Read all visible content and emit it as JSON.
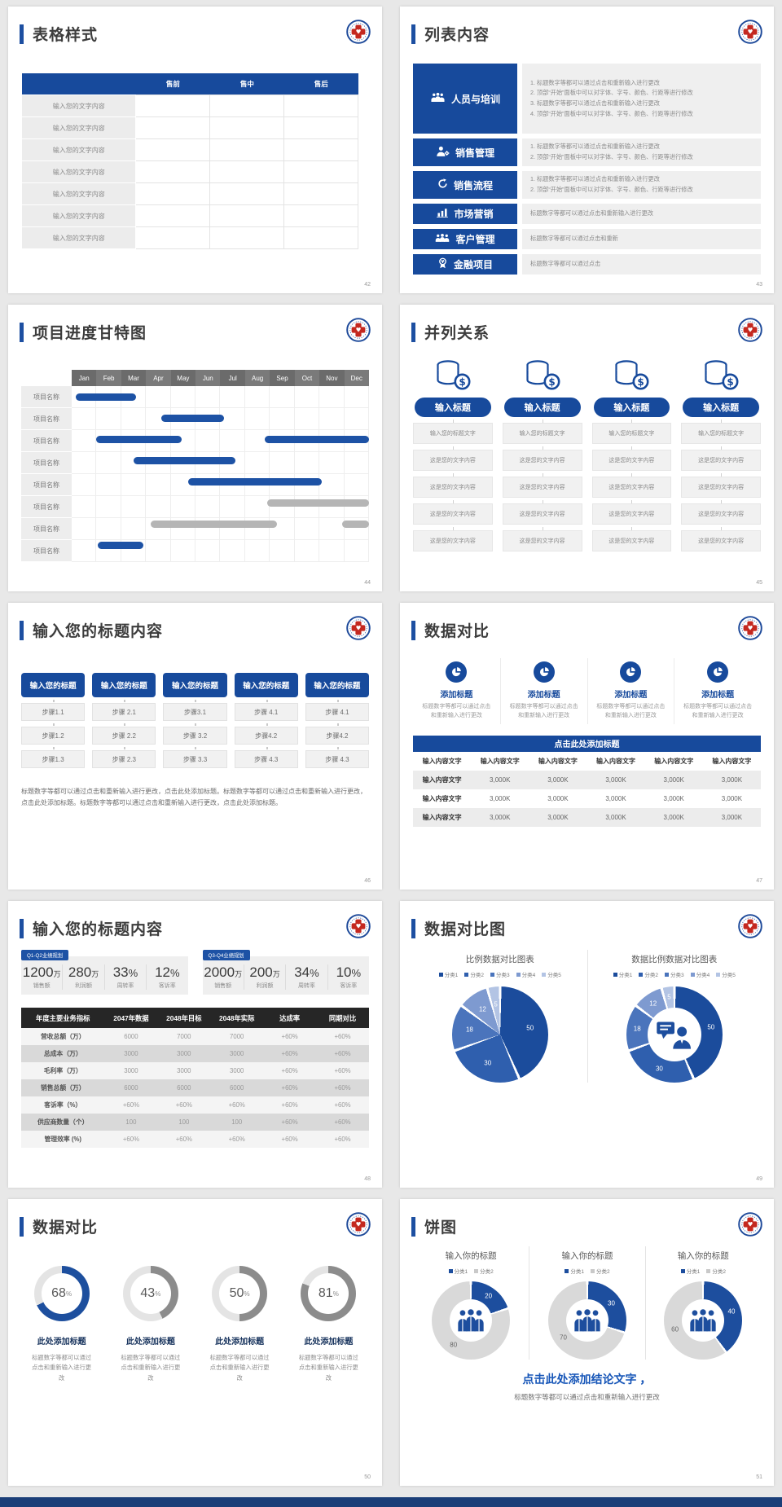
{
  "colors": {
    "primary": "#174A9C",
    "accent_bar": "#1D4FA1",
    "bar_blue": "#1D52A5",
    "bar_gray": "#B5B5B5",
    "month_dark": "#6B6B6B",
    "month_light": "#7A7A7A",
    "strip": "#1B3E78",
    "pie_palette": [
      "#1B4C9C",
      "#2F5FAE",
      "#4A74BC",
      "#7E9AD0",
      "#B3C4E4"
    ],
    "donut_blue": "#1D4E9E",
    "donut_gray": "#D9D9D9",
    "ring_blue": "#1D4F9E",
    "ring_gray": "#8C8C8C",
    "ring_base": "#E4E4E4"
  },
  "slides": {
    "s42": {
      "title": "表格样式",
      "page_num": "42",
      "table": {
        "headers": [
          "",
          "售前",
          "售中",
          "售后"
        ],
        "row_label": "输入您的文字内容",
        "row_count": 7
      }
    },
    "s43": {
      "title": "列表内容",
      "page_num": "43",
      "items": [
        {
          "label": "人员与培训",
          "icon": "team-icon",
          "size": "tall",
          "numbered": true,
          "lines": [
            "标题数字等都可以通过点击和重新输入进行更改",
            "顶部“开始”面板中可以对字体、字号、颜色、行距等进行修改",
            "标题数字等都可以通过点击和重新输入进行更改",
            "顶部“开始”面板中可以对字体、字号、颜色、行距等进行修改"
          ]
        },
        {
          "label": "销售管理",
          "icon": "person-gear-icon",
          "size": "two",
          "numbered": true,
          "lines": [
            "标题数字等都可以通过点击和重新输入进行更改",
            "顶部“开始”面板中可以对字体、字号、颜色、行距等进行修改"
          ]
        },
        {
          "label": "销售流程",
          "icon": "cycle-icon",
          "size": "two",
          "numbered": true,
          "lines": [
            "标题数字等都可以通过点击和重新输入进行更改",
            "顶部“开始”面板中可以对字体、字号、颜色、行距等进行修改"
          ]
        },
        {
          "label": "市场营销",
          "icon": "bar-chart-icon",
          "size": "one",
          "numbered": false,
          "lines": [
            "标题数字等都可以通过点击和重新输入进行更改"
          ]
        },
        {
          "label": "客户管理",
          "icon": "customers-icon",
          "size": "one",
          "numbered": false,
          "lines": [
            "标题数字等都可以通过点击和重新"
          ]
        },
        {
          "label": "金融项目",
          "icon": "finance-icon",
          "size": "one",
          "numbered": false,
          "lines": [
            "标题数字等都可以通过点击"
          ]
        }
      ]
    },
    "s44": {
      "title": "项目进度甘特图",
      "page_num": "44",
      "months": [
        "Jan",
        "Feb",
        "Mar",
        "Apr",
        "May",
        "Jun",
        "Jul",
        "Aug",
        "Sep",
        "Oct",
        "Nov",
        "Dec"
      ],
      "row_label": "项目名称",
      "row_count": 8,
      "bars": [
        {
          "row": 0,
          "start": 0.15,
          "end": 2.6,
          "color": "blue"
        },
        {
          "row": 1,
          "start": 3.6,
          "end": 6.15,
          "color": "blue"
        },
        {
          "row": 2,
          "start": 1.0,
          "end": 4.45,
          "color": "blue"
        },
        {
          "row": 2,
          "start": 7.8,
          "end": 12,
          "color": "blue"
        },
        {
          "row": 3,
          "start": 2.5,
          "end": 6.6,
          "color": "blue"
        },
        {
          "row": 4,
          "start": 4.7,
          "end": 10.1,
          "color": "blue"
        },
        {
          "row": 5,
          "start": 7.9,
          "end": 12,
          "color": "gray"
        },
        {
          "row": 6,
          "start": 3.2,
          "end": 8.3,
          "color": "gray"
        },
        {
          "row": 6,
          "start": 10.9,
          "end": 12,
          "color": "gray"
        },
        {
          "row": 7,
          "start": 1.05,
          "end": 2.9,
          "color": "blue"
        }
      ]
    },
    "s45": {
      "title": "并列关系",
      "page_num": "45",
      "columns": 4,
      "icon": "coins-icon",
      "pill_label": "输入标题",
      "rows": [
        "输入您的标题文字",
        "这是您的文字内容",
        "这是您的文字内容",
        "这是您的文字内容",
        "这是您的文字内容"
      ]
    },
    "s46": {
      "title": "输入您的标题内容",
      "page_num": "46",
      "header_label": "输入您的标题",
      "columns": [
        [
          "步骤1.1",
          "步骤1.2",
          "步骤1.3"
        ],
        [
          "步骤 2.1",
          "步骤 2.2",
          "步骤 2.3"
        ],
        [
          "步骤3.1",
          "步骤 3.2",
          "步骤 3.3"
        ],
        [
          "步骤 4.1",
          "步骤4.2",
          "步骤 4.3"
        ],
        [
          "步骤 4.1",
          "步骤4.2",
          "步骤 4.3"
        ]
      ],
      "paragraph": "标题数字等都可以通过点击和重新输入进行更改，点击此处添加标题。标题数字等都可以通过点击和重新输入进行更改，点击此处添加标题。标题数字等都可以通过点击和重新输入进行更改，点击此处添加标题。"
    },
    "s47": {
      "title": "数据对比",
      "page_num": "47",
      "features": [
        {
          "title": "添加标题",
          "desc": "标题数字等都可以通过点击和重新输入进行更改"
        },
        {
          "title": "添加标题",
          "desc": "标题数字等都可以通过点击和重新输入进行更改"
        },
        {
          "title": "添加标题",
          "desc": "标题数字等都可以通过点击和重新输入进行更改"
        },
        {
          "title": "添加标题",
          "desc": "标题数字等都可以通过点击和重新输入进行更改"
        }
      ],
      "table_title": "点击此处添加标题",
      "col_header": "输入内容文字",
      "col_count": 6,
      "rows": [
        [
          "输入内容文字",
          "3,000K",
          "3,000K",
          "3,000K",
          "3,000K",
          "3,000K"
        ],
        [
          "输入内容文字",
          "3,000K",
          "3,000K",
          "3,000K",
          "3,000K",
          "3,000K"
        ],
        [
          "输入内容文字",
          "3,000K",
          "3,000K",
          "3,000K",
          "3,000K",
          "3,000K"
        ]
      ]
    },
    "s48": {
      "title": "输入您的标题内容",
      "page_num": "48",
      "groups": [
        {
          "tag": "Q1-Q2业绩规划",
          "stats": [
            {
              "value": "1200",
              "unit": "万",
              "label": "销售额"
            },
            {
              "value": "280",
              "unit": "万",
              "label": "利润额"
            },
            {
              "value": "33",
              "unit": "%",
              "label": "周转率"
            },
            {
              "value": "12",
              "unit": "%",
              "label": "客诉率"
            }
          ]
        },
        {
          "tag": "Q3-Q4业绩规划",
          "stats": [
            {
              "value": "2000",
              "unit": "万",
              "label": "销售额"
            },
            {
              "value": "200",
              "unit": "万",
              "label": "利润额"
            },
            {
              "value": "34",
              "unit": "%",
              "label": "周转率"
            },
            {
              "value": "10",
              "unit": "%",
              "label": "客诉率"
            }
          ]
        }
      ],
      "table": {
        "headers": [
          "年度主要业务指标",
          "2047年数据",
          "2048年目标",
          "2048年实际",
          "达成率",
          "同期对比"
        ],
        "rows": [
          [
            "营收总额（万）",
            "6000",
            "7000",
            "7000",
            "+60%",
            "+60%"
          ],
          [
            "总成本（万）",
            "3000",
            "3000",
            "3000",
            "+60%",
            "+60%"
          ],
          [
            "毛利率（万）",
            "3000",
            "3000",
            "3000",
            "+60%",
            "+60%"
          ],
          [
            "销售总额（万）",
            "6000",
            "6000",
            "6000",
            "+60%",
            "+60%"
          ],
          [
            "客诉率（%）",
            "+60%",
            "+60%",
            "+60%",
            "+60%",
            "+60%"
          ],
          [
            "供应商数量（个）",
            "100",
            "100",
            "100",
            "+60%",
            "+60%"
          ],
          [
            "管理效率 (%)",
            "+60%",
            "+60%",
            "+60%",
            "+60%",
            "+60%"
          ]
        ]
      }
    },
    "s49": {
      "title": "数据对比图",
      "page_num": "49",
      "charts": [
        {
          "kind": "pie",
          "title": "比例数据对比图表",
          "legend": [
            "分类1",
            "分类2",
            "分类3",
            "分类4",
            "分类5"
          ],
          "values": [
            50,
            30,
            18,
            12,
            5
          ]
        },
        {
          "kind": "donut",
          "title": "数据比例数据对比图表",
          "legend": [
            "分类1",
            "分类2",
            "分类3",
            "分类4",
            "分类5"
          ],
          "values": [
            50,
            30,
            18,
            12,
            5
          ],
          "center_icon": "person-speech-icon"
        }
      ]
    },
    "s50": {
      "title": "数据对比",
      "page_num": "50",
      "donuts": [
        {
          "pct": 68,
          "accent": true
        },
        {
          "pct": 43,
          "accent": false
        },
        {
          "pct": 50,
          "accent": false
        },
        {
          "pct": 81,
          "accent": false
        }
      ],
      "caption_title": "此处添加标题",
      "caption_text": "标题数字等都可以通过点击和重新输入进行更改"
    },
    "s51": {
      "title": "饼图",
      "page_num": "51",
      "charts": [
        {
          "title": "输入你的标题",
          "legend": [
            "分类1",
            "分类2"
          ],
          "values": [
            20,
            80
          ],
          "center_icon": "people-icon"
        },
        {
          "title": "输入你的标题",
          "legend": [
            "分类1",
            "分类2"
          ],
          "values": [
            30,
            70
          ],
          "center_icon": "people-icon"
        },
        {
          "title": "输入你的标题",
          "legend": [
            "分类1",
            "分类2"
          ],
          "values": [
            40,
            60
          ],
          "center_icon": "people-icon"
        }
      ],
      "conclusion_title": "点击此处添加结论文字 ，",
      "conclusion_text": "标题数字等都可以通过点击和重新输入进行更改"
    }
  },
  "chart_data": [
    {
      "type": "bar",
      "variant": "gantt",
      "title": "项目进度甘特图",
      "x_ticks": [
        "Jan",
        "Feb",
        "Mar",
        "Apr",
        "May",
        "Jun",
        "Jul",
        "Aug",
        "Sep",
        "Oct",
        "Nov",
        "Dec"
      ],
      "rows": [
        "项目名称",
        "项目名称",
        "项目名称",
        "项目名称",
        "项目名称",
        "项目名称",
        "项目名称",
        "项目名称"
      ],
      "bars_month_units": [
        [
          0,
          0.15,
          2.6,
          "blue"
        ],
        [
          1,
          3.6,
          6.15,
          "blue"
        ],
        [
          2,
          1.0,
          4.45,
          "blue"
        ],
        [
          2,
          7.8,
          12,
          "blue"
        ],
        [
          3,
          2.5,
          6.6,
          "blue"
        ],
        [
          4,
          4.7,
          10.1,
          "blue"
        ],
        [
          5,
          7.9,
          12,
          "gray"
        ],
        [
          6,
          3.2,
          8.3,
          "gray"
        ],
        [
          6,
          10.9,
          12,
          "gray"
        ],
        [
          7,
          1.05,
          2.9,
          "blue"
        ]
      ]
    },
    {
      "type": "pie",
      "title": "比例数据对比图表",
      "labels": [
        "分类1",
        "分类2",
        "分类3",
        "分类4",
        "分类5"
      ],
      "values": [
        50,
        30,
        18,
        12,
        5
      ],
      "legend_position": "top"
    },
    {
      "type": "pie",
      "title": "数据比例数据对比图表",
      "labels": [
        "分类1",
        "分类2",
        "分类3",
        "分类4",
        "分类5"
      ],
      "values": [
        50,
        30,
        18,
        12,
        5
      ],
      "donut": true,
      "legend_position": "top"
    },
    {
      "type": "pie",
      "variant": "progress-rings",
      "title": "数据对比",
      "values": [
        68,
        43,
        50,
        81
      ],
      "unit": "%"
    },
    {
      "type": "pie",
      "title": "输入你的标题",
      "labels": [
        "分类1",
        "分类2"
      ],
      "values": [
        20,
        80
      ],
      "donut": true
    },
    {
      "type": "pie",
      "title": "输入你的标题",
      "labels": [
        "分类1",
        "分类2"
      ],
      "values": [
        30,
        70
      ],
      "donut": true
    },
    {
      "type": "pie",
      "title": "输入你的标题",
      "labels": [
        "分类1",
        "分类2"
      ],
      "values": [
        40,
        60
      ],
      "donut": true
    }
  ]
}
